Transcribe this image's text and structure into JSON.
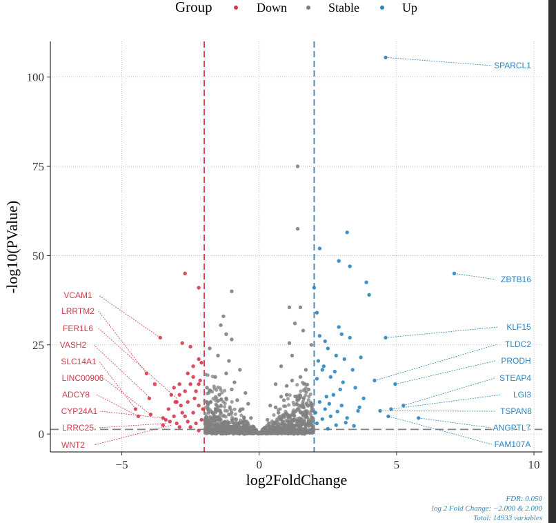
{
  "colors": {
    "down": "#d6394d",
    "stable": "#808080",
    "up": "#2e86c1",
    "cutoff": "#7f7f7f"
  },
  "chart_data": {
    "type": "scatter",
    "xlabel": "log2FoldChange",
    "ylabel": "-log10(PValue)",
    "xlim": [
      -7.6,
      10.3
    ],
    "ylim": [
      -5,
      110
    ],
    "xticks": [
      -5,
      0,
      5,
      10
    ],
    "yticks": [
      0,
      25,
      50,
      75,
      100
    ],
    "xtick_labels": [
      "−5",
      "0",
      "5",
      "10"
    ],
    "ytick_labels": [
      "0",
      "25",
      "50",
      "75",
      "100"
    ],
    "grid": true,
    "legend": {
      "title": "Group",
      "position": "top",
      "entries": [
        "Down",
        "Stable",
        "Up"
      ]
    },
    "fc_threshold": [
      -2,
      2
    ],
    "pvalue_line": 1.3,
    "caption": [
      "FDR:  0.050",
      "log 2 Fold Change: −2.000 & 2.000",
      "Total: 14933 variables"
    ],
    "series": [
      {
        "name": "Down",
        "color": "#d6394d",
        "points": [
          [
            -3.6,
            27
          ],
          [
            -2.7,
            45
          ],
          [
            -2.2,
            41
          ],
          [
            -2.8,
            25.5
          ],
          [
            -2.5,
            24.5
          ],
          [
            -2.2,
            21
          ],
          [
            -2.1,
            20
          ],
          [
            -2.4,
            19
          ],
          [
            -2.6,
            17
          ],
          [
            -3.1,
            13
          ],
          [
            -2.9,
            11
          ],
          [
            -3.0,
            9
          ],
          [
            -3.3,
            7
          ],
          [
            -2.8,
            6
          ],
          [
            -2.2,
            8
          ],
          [
            -2.5,
            14
          ],
          [
            -3.4,
            4
          ],
          [
            -3.0,
            3
          ],
          [
            -2.5,
            2
          ],
          [
            -2.2,
            1
          ],
          [
            -2.7,
            5
          ],
          [
            -2.3,
            12
          ],
          [
            -3.2,
            11
          ],
          [
            -2.1,
            4
          ],
          [
            -2.4,
            6
          ],
          [
            -2.9,
            2
          ],
          [
            -2.6,
            9
          ],
          [
            -2.3,
            3
          ],
          [
            -3.1,
            5
          ],
          [
            -2.4,
            16
          ],
          [
            -2.2,
            14
          ],
          [
            -2.9,
            14
          ],
          [
            -2.7,
            12
          ],
          [
            -3.5,
            2.5
          ],
          [
            -2.05,
            7
          ],
          [
            -2.15,
            15
          ],
          [
            -2.35,
            10
          ],
          [
            -2.85,
            8
          ],
          [
            -3.25,
            3.5
          ],
          [
            -2.6,
            3.5
          ],
          [
            -3.8,
            14
          ],
          [
            -4.0,
            10
          ],
          [
            -4.5,
            7
          ],
          [
            -3.95,
            5.5
          ],
          [
            -4.4,
            5
          ],
          [
            -3.5,
            4.5
          ],
          [
            -4.1,
            17
          ],
          [
            -3.05,
            9
          ]
        ]
      },
      {
        "name": "Up",
        "color": "#2e86c1",
        "points": [
          [
            4.6,
            105.5
          ],
          [
            7.1,
            45
          ],
          [
            3.2,
            56.5
          ],
          [
            2.2,
            52
          ],
          [
            2.9,
            48.5
          ],
          [
            3.3,
            47
          ],
          [
            3.9,
            42.5
          ],
          [
            4.0,
            39
          ],
          [
            2.0,
            41
          ],
          [
            2.1,
            34
          ],
          [
            4.6,
            27
          ],
          [
            4.2,
            15
          ],
          [
            4.95,
            14
          ],
          [
            5.25,
            8
          ],
          [
            4.8,
            7
          ],
          [
            4.4,
            6.5
          ],
          [
            5.8,
            4.5
          ],
          [
            4.7,
            5
          ],
          [
            2.9,
            30
          ],
          [
            3.0,
            28
          ],
          [
            3.3,
            27
          ],
          [
            3.7,
            21.5
          ],
          [
            2.2,
            27.5
          ],
          [
            2.4,
            26
          ],
          [
            2.5,
            24
          ],
          [
            2.8,
            22
          ],
          [
            3.1,
            21
          ],
          [
            3.4,
            18
          ],
          [
            2.3,
            18
          ],
          [
            2.6,
            16
          ],
          [
            2.1,
            15.5
          ],
          [
            3.5,
            13
          ],
          [
            2.7,
            11
          ],
          [
            3.8,
            10
          ],
          [
            2.2,
            9
          ],
          [
            3.0,
            8
          ],
          [
            2.4,
            7
          ],
          [
            3.6,
            6.5
          ],
          [
            2.6,
            5
          ],
          [
            3.2,
            4.5
          ],
          [
            2.1,
            3
          ],
          [
            2.8,
            2.5
          ],
          [
            2.5,
            1.5
          ],
          [
            2.3,
            4.2
          ],
          [
            2.95,
            12.5
          ],
          [
            3.65,
            7.5
          ],
          [
            2.05,
            6
          ],
          [
            2.45,
            10.5
          ],
          [
            3.15,
            3.2
          ],
          [
            2.75,
            17.5
          ],
          [
            2.15,
            20.5
          ],
          [
            3.05,
            14.5
          ],
          [
            2.35,
            19
          ],
          [
            2.55,
            8.5
          ],
          [
            3.45,
            2.3
          ],
          [
            2.85,
            6.3
          ]
        ]
      },
      {
        "name": "Stable",
        "color": "#808080",
        "points": [
          [
            1.4,
            75
          ],
          [
            1.4,
            57.5
          ],
          [
            -1.0,
            40
          ],
          [
            1.1,
            35.5
          ],
          [
            1.5,
            35.5
          ],
          [
            -1.3,
            33
          ],
          [
            -1.4,
            30.5
          ],
          [
            -1.2,
            28
          ],
          [
            -1.0,
            26.5
          ],
          [
            1.6,
            29
          ],
          [
            1.3,
            31
          ],
          [
            1.1,
            25.5
          ],
          [
            1.9,
            25
          ],
          [
            -1.8,
            24
          ],
          [
            -1.5,
            22
          ],
          [
            1.2,
            22
          ],
          [
            -1.1,
            20.5
          ],
          [
            0.8,
            19
          ],
          [
            -0.7,
            18
          ],
          [
            1.7,
            18
          ],
          [
            -1.6,
            16
          ],
          [
            1.5,
            16
          ],
          [
            -0.9,
            14.5
          ],
          [
            0.6,
            14
          ],
          [
            -1.9,
            13
          ],
          [
            1.8,
            12.5
          ],
          [
            -0.5,
            11.5
          ],
          [
            1.0,
            11
          ],
          [
            -1.2,
            10
          ],
          [
            0.9,
            9.5
          ],
          [
            -0.4,
            8.5
          ],
          [
            0.4,
            8
          ],
          [
            -1.5,
            7.5
          ],
          [
            1.4,
            7
          ],
          [
            -0.7,
            6.5
          ],
          [
            0.7,
            6
          ],
          [
            -1.1,
            5.5
          ],
          [
            1.1,
            5
          ],
          [
            -0.3,
            4.5
          ],
          [
            0.3,
            4
          ],
          [
            -1.8,
            3.8
          ],
          [
            1.8,
            3.6
          ],
          [
            -0.6,
            3.2
          ],
          [
            0.6,
            3
          ],
          [
            -1.3,
            2.6
          ],
          [
            1.3,
            2.4
          ],
          [
            -0.2,
            2
          ],
          [
            0.2,
            1.8
          ],
          [
            -0.9,
            1.5
          ],
          [
            0.9,
            1.3
          ],
          [
            -0.1,
            1
          ],
          [
            0.1,
            0.8
          ],
          [
            -1.6,
            1.1
          ],
          [
            1.6,
            1
          ],
          [
            -0.4,
            0.6
          ],
          [
            0.4,
            0.5
          ],
          [
            -0.05,
            0.3
          ],
          [
            0.05,
            0.2
          ],
          [
            -1.9,
            9
          ],
          [
            1.9,
            8.5
          ],
          [
            -1.0,
            12.5
          ],
          [
            1.0,
            13.5
          ],
          [
            -1.7,
            6
          ],
          [
            1.7,
            5.5
          ],
          [
            -0.8,
            9.5
          ],
          [
            0.8,
            10.5
          ],
          [
            -1.4,
            4
          ],
          [
            1.4,
            3.4
          ],
          [
            -0.5,
            2.2
          ],
          [
            0.5,
            2.5
          ],
          [
            -1.2,
            17
          ],
          [
            1.2,
            15
          ],
          [
            -0.6,
            7
          ],
          [
            0.6,
            7.5
          ],
          [
            -1.95,
            2
          ],
          [
            1.95,
            1.8
          ],
          [
            -0.25,
            1.5
          ],
          [
            0.25,
            1.2
          ],
          [
            -1.45,
            11
          ],
          [
            1.45,
            10
          ]
        ]
      }
    ],
    "annotations": {
      "down": [
        {
          "label": "VCAM1",
          "x": -3.6,
          "y": 27
        },
        {
          "label": "LRRTM2",
          "x": -4.1,
          "y": 17
        },
        {
          "label": "FER1L6",
          "x": -3.0,
          "y": 10
        },
        {
          "label": "VASH2",
          "x": -3.95,
          "y": 10
        },
        {
          "label": "SLC14A1",
          "x": -4.5,
          "y": 7
        },
        {
          "label": "LINC00906",
          "x": -3.95,
          "y": 5.5
        },
        {
          "label": "ADCY8",
          "x": -4.4,
          "y": 5
        },
        {
          "label": "CYP24A1",
          "x": -3.5,
          "y": 4.5
        },
        {
          "label": "LRRC25",
          "x": -3.4,
          "y": 3
        },
        {
          "label": "WNT2",
          "x": -3.2,
          "y": 2.5
        }
      ],
      "up": [
        {
          "label": "SPARCL1",
          "x": 4.6,
          "y": 105.5
        },
        {
          "label": "ZBTB16",
          "x": 7.1,
          "y": 45
        },
        {
          "label": "KLF15",
          "x": 4.6,
          "y": 27
        },
        {
          "label": "TLDC2",
          "x": 4.2,
          "y": 15
        },
        {
          "label": "PRODH",
          "x": 4.95,
          "y": 14
        },
        {
          "label": "STEAP4",
          "x": 5.25,
          "y": 8
        },
        {
          "label": "LGI3",
          "x": 4.8,
          "y": 7
        },
        {
          "label": "TSPAN8",
          "x": 4.4,
          "y": 6.5
        },
        {
          "label": "ANGPTL7",
          "x": 5.8,
          "y": 4.5
        },
        {
          "label": "FAM107A",
          "x": 4.7,
          "y": 5
        }
      ]
    }
  }
}
